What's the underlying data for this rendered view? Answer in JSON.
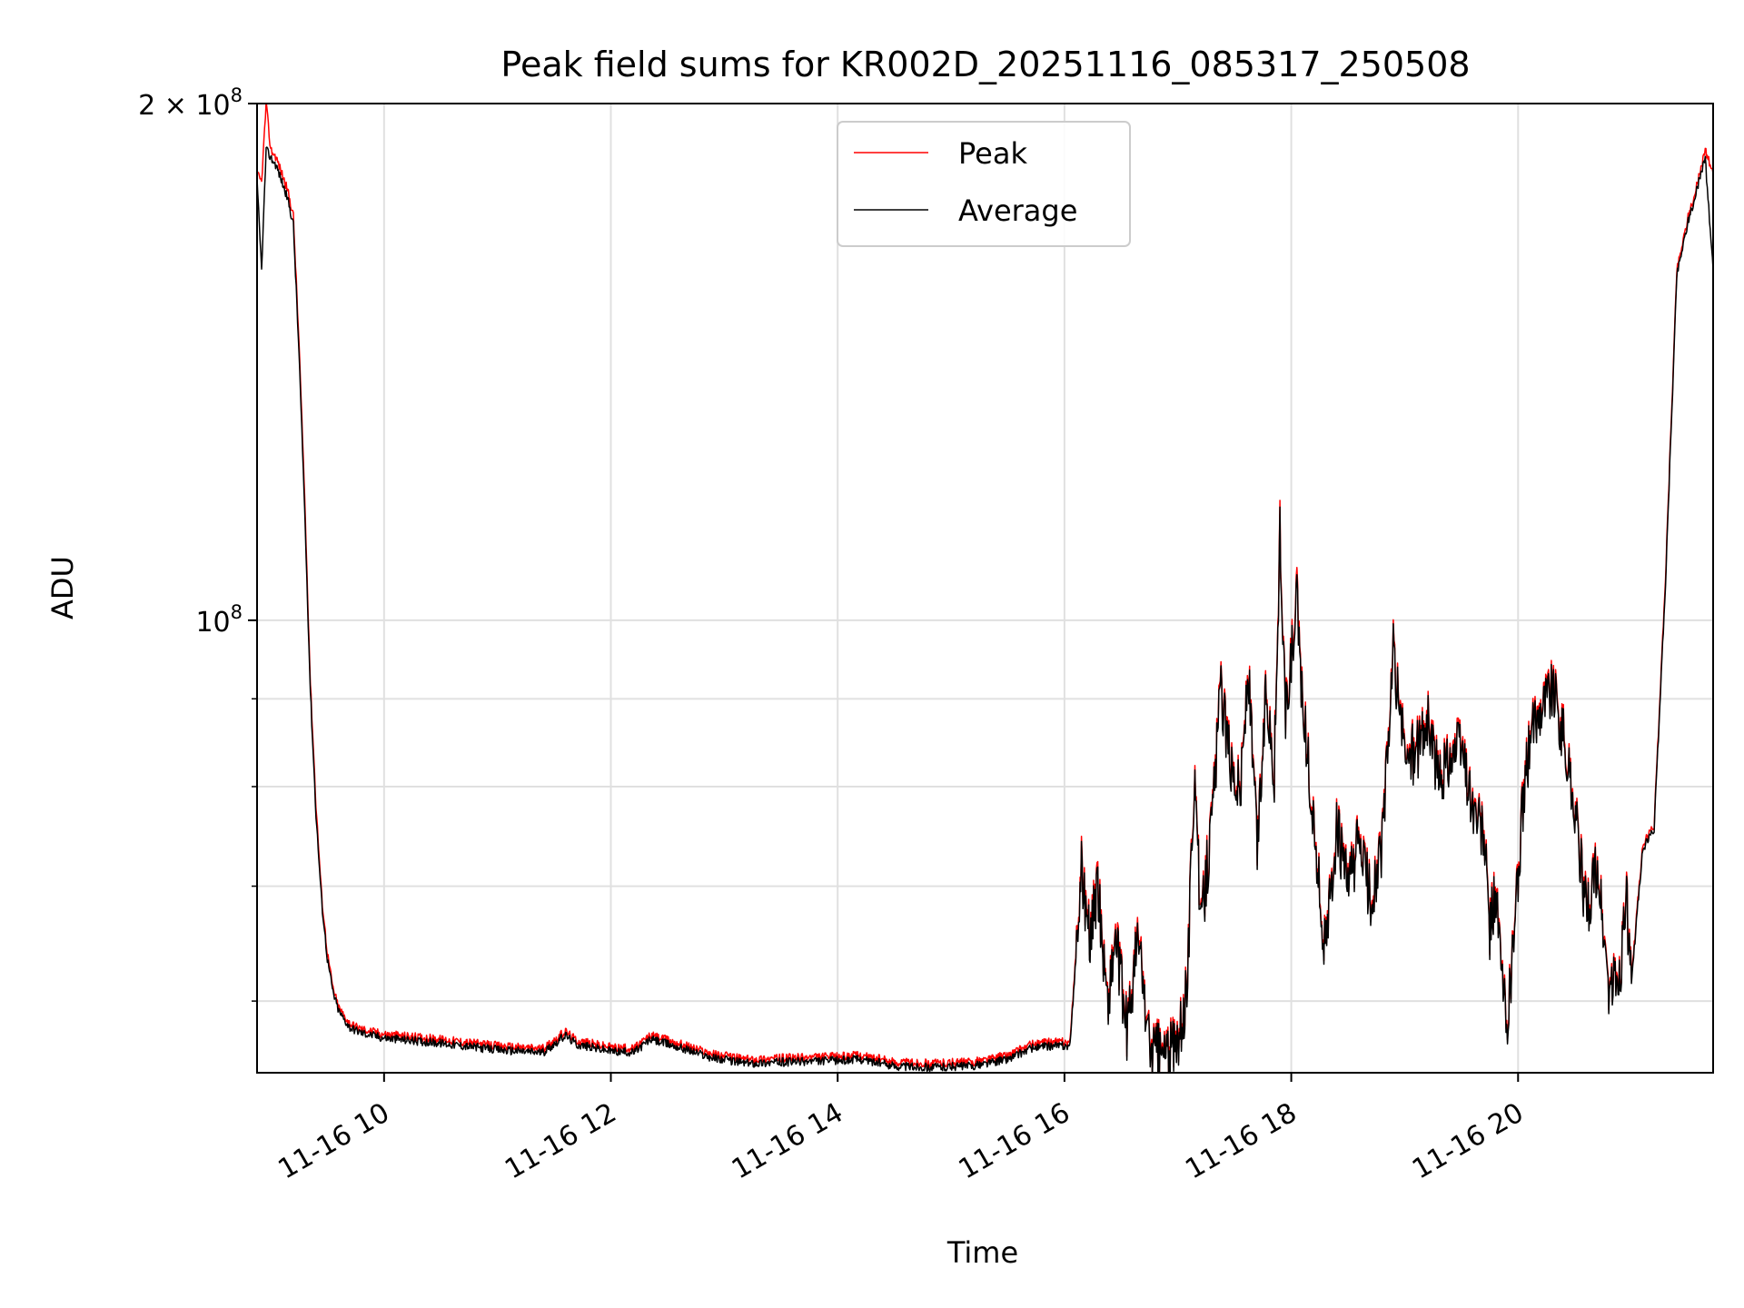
{
  "chart_data": {
    "type": "line",
    "title": "Peak field sums for KR002D_20251116_085317_250508",
    "xlabel": "Time",
    "ylabel": "ADU",
    "yscale": "log",
    "grid": true,
    "legend_position": "top-center",
    "xlim_hours": [
      8.88,
      21.72
    ],
    "ylim": [
      54500000,
      200000000
    ],
    "x_ticks": [
      {
        "value": 10,
        "label": "11-16 10"
      },
      {
        "value": 12,
        "label": "11-16 12"
      },
      {
        "value": 14,
        "label": "11-16 14"
      },
      {
        "value": 16,
        "label": "11-16 16"
      },
      {
        "value": 18,
        "label": "11-16 18"
      },
      {
        "value": 20,
        "label": "11-16 20"
      }
    ],
    "y_major_ticks": [
      {
        "value": 100000000,
        "base": "10",
        "exp": "8",
        "mult": ""
      },
      {
        "value": 200000000,
        "base": "10",
        "exp": "8",
        "mult": "2 × "
      }
    ],
    "y_minor_ticks": [
      60000000,
      70000000,
      80000000,
      90000000,
      100000000,
      200000000
    ],
    "series": [
      {
        "name": "Peak",
        "color": "#ff0000",
        "x": [
          8.88,
          8.92,
          8.96,
          9.0,
          9.05,
          9.1,
          9.15,
          9.2,
          9.25,
          9.3,
          9.35,
          9.4,
          9.45,
          9.5,
          9.55,
          9.6,
          9.65,
          9.7,
          9.8,
          10.0,
          10.5,
          11.0,
          11.4,
          11.6,
          11.7,
          12.0,
          12.2,
          12.35,
          12.6,
          12.9,
          13.2,
          13.6,
          14.0,
          14.2,
          14.5,
          14.8,
          15.2,
          15.5,
          15.7,
          15.9,
          16.05,
          16.15,
          16.22,
          16.3,
          16.38,
          16.45,
          16.55,
          16.65,
          16.75,
          16.85,
          17.0,
          17.08,
          17.15,
          17.2,
          17.3,
          17.38,
          17.45,
          17.55,
          17.62,
          17.7,
          17.78,
          17.85,
          17.9,
          17.95,
          18.05,
          18.1,
          18.2,
          18.3,
          18.4,
          18.5,
          18.6,
          18.7,
          18.8,
          18.9,
          19.0,
          19.1,
          19.2,
          19.3,
          19.4,
          19.5,
          19.6,
          19.7,
          19.75,
          19.8,
          19.85,
          19.9,
          20.0,
          20.05,
          20.1,
          20.2,
          20.3,
          20.4,
          20.5,
          20.6,
          20.7,
          20.8,
          20.9,
          20.95,
          21.0,
          21.05,
          21.1,
          21.2,
          21.3,
          21.4,
          21.5,
          21.55,
          21.6,
          21.65,
          21.72
        ],
        "values": [
          182000000,
          180000000,
          200000000,
          188000000,
          186000000,
          182000000,
          178000000,
          172000000,
          145000000,
          118000000,
          92000000,
          78000000,
          69000000,
          64000000,
          61000000,
          59500000,
          58800000,
          58200000,
          57800000,
          57400000,
          57000000,
          56500000,
          56300000,
          57600000,
          56900000,
          56400000,
          56300000,
          57300000,
          56700000,
          55900000,
          55500000,
          55600000,
          55700000,
          55800000,
          55300000,
          55200000,
          55300000,
          55800000,
          56600000,
          56800000,
          56800000,
          72000000,
          66000000,
          70000000,
          60000000,
          66000000,
          58000000,
          66000000,
          56700000,
          56300000,
          56700000,
          61000000,
          84000000,
          66000000,
          77000000,
          92000000,
          84000000,
          80000000,
          94000000,
          74000000,
          92000000,
          82000000,
          113000000,
          88000000,
          103000000,
          90000000,
          76000000,
          64000000,
          76000000,
          70000000,
          75000000,
          69000000,
          74000000,
          96000000,
          84000000,
          84000000,
          88000000,
          81000000,
          84000000,
          85000000,
          78000000,
          75000000,
          66000000,
          70000000,
          63000000,
          58000000,
          71000000,
          80000000,
          85000000,
          90000000,
          92000000,
          86000000,
          78000000,
          68000000,
          72000000,
          61000000,
          62000000,
          70000000,
          61500000,
          68000000,
          74000000,
          76000000,
          106000000,
          160000000,
          172000000,
          176000000,
          182000000,
          188000000,
          182000000
        ],
        "offset_ratio": 1.006
      },
      {
        "name": "Average",
        "color": "#000000",
        "x": [
          8.88,
          8.92,
          8.96,
          9.0,
          9.05,
          9.1,
          9.15,
          9.2,
          9.25,
          9.3,
          9.35,
          9.4,
          9.45,
          9.5,
          9.55,
          9.6,
          9.65,
          9.7,
          9.8,
          10.0,
          10.5,
          11.0,
          11.4,
          11.6,
          11.7,
          12.0,
          12.2,
          12.35,
          12.6,
          12.9,
          13.2,
          13.6,
          14.0,
          14.2,
          14.5,
          14.8,
          15.2,
          15.5,
          15.7,
          15.9,
          16.05,
          16.15,
          16.22,
          16.3,
          16.38,
          16.45,
          16.55,
          16.65,
          16.75,
          16.85,
          17.0,
          17.08,
          17.15,
          17.2,
          17.3,
          17.38,
          17.45,
          17.55,
          17.62,
          17.7,
          17.78,
          17.85,
          17.9,
          17.95,
          18.05,
          18.1,
          18.2,
          18.3,
          18.4,
          18.5,
          18.6,
          18.7,
          18.8,
          18.9,
          19.0,
          19.1,
          19.2,
          19.3,
          19.4,
          19.5,
          19.6,
          19.7,
          19.75,
          19.8,
          19.85,
          19.9,
          20.0,
          20.05,
          20.1,
          20.2,
          20.3,
          20.4,
          20.5,
          20.6,
          20.7,
          20.8,
          20.9,
          20.95,
          21.0,
          21.05,
          21.1,
          21.2,
          21.3,
          21.4,
          21.5,
          21.55,
          21.6,
          21.65,
          21.72
        ],
        "values": [
          180000000,
          160000000,
          188000000,
          186000000,
          184000000,
          180000000,
          176000000,
          170000000,
          143000000,
          116000000,
          91000000,
          77000000,
          68500000,
          63500000,
          60700000,
          59200000,
          58500000,
          57900000,
          57500000,
          57100000,
          56700000,
          56200000,
          56000000,
          57300000,
          56600000,
          56100000,
          56000000,
          57000000,
          56400000,
          55600000,
          55200000,
          55300000,
          55400000,
          55500000,
          55000000,
          54900000,
          55000000,
          55500000,
          56300000,
          56500000,
          56500000,
          71500000,
          65500000,
          69500000,
          59700000,
          65500000,
          57700000,
          65500000,
          56400000,
          56000000,
          56400000,
          60700000,
          83500000,
          65600000,
          76500000,
          91500000,
          83500000,
          79500000,
          93500000,
          73600000,
          91500000,
          81500000,
          112000000,
          87500000,
          102000000,
          89500000,
          75600000,
          63700000,
          75600000,
          69600000,
          74600000,
          68600000,
          73600000,
          95500000,
          83500000,
          83500000,
          87500000,
          80500000,
          83500000,
          84500000,
          77600000,
          74600000,
          65600000,
          69600000,
          62700000,
          57700000,
          70600000,
          79500000,
          84500000,
          89500000,
          91500000,
          85500000,
          77600000,
          67600000,
          71600000,
          60700000,
          61700000,
          69600000,
          61200000,
          67600000,
          73600000,
          75600000,
          105000000,
          159000000,
          171000000,
          175000000,
          181000000,
          186000000,
          160000000
        ]
      }
    ]
  }
}
